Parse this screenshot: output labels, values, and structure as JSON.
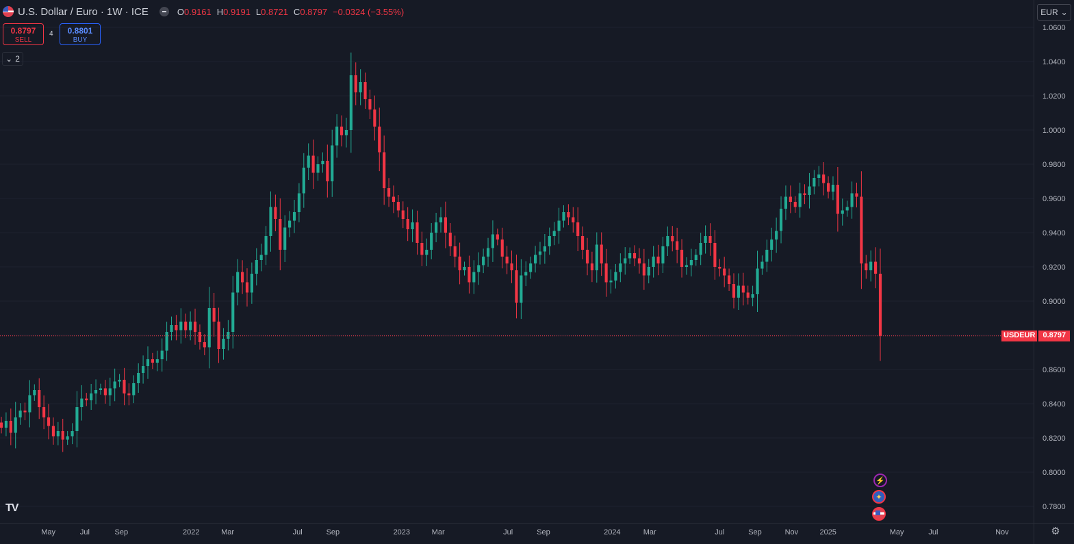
{
  "header": {
    "title": "U.S. Dollar / Euro · 1W · ICE",
    "ohlc": [
      {
        "k": "O",
        "v": "0.9161"
      },
      {
        "k": "H",
        "v": "0.9191"
      },
      {
        "k": "L",
        "v": "0.8721"
      },
      {
        "k": "C",
        "v": "0.8797"
      }
    ],
    "change": "−0.0324 (−3.55%)"
  },
  "trade": {
    "sell_price": "0.8797",
    "sell_label": "SELL",
    "buy_price": "0.8801",
    "buy_label": "BUY",
    "spread": "4"
  },
  "indicators_toggle": "2",
  "currency": "EUR",
  "last_price_tag": {
    "symbol": "USDEUR",
    "value": "0.8797"
  },
  "colors": {
    "up": "#22ab94",
    "down": "#f23645",
    "background": "#161a25",
    "grid": "#1f2330"
  },
  "icons": [
    "tradingview-logo-icon",
    "settings-gear-icon",
    "flash-event-icon",
    "eu-flag-event-icon",
    "us-flag-event-icon",
    "chevron-down-icon",
    "minus-icon"
  ],
  "chart_data": {
    "type": "candlestick",
    "series_name": "USDEUR",
    "timeframe": "1W",
    "ylim": [
      0.77,
      1.064
    ],
    "y_ticks": [
      "1.0600",
      "1.0400",
      "1.0200",
      "1.0000",
      "0.9800",
      "0.9600",
      "0.9400",
      "0.9200",
      "0.9000",
      "0.8800",
      "0.8600",
      "0.8400",
      "0.8200",
      "0.8000",
      "0.7800"
    ],
    "y_tick_values": [
      1.06,
      1.04,
      1.02,
      1.0,
      0.98,
      0.96,
      0.94,
      0.92,
      0.9,
      0.88,
      0.86,
      0.84,
      0.82,
      0.8,
      0.78
    ],
    "x_ticks": [
      {
        "label": "May",
        "x": 0.045
      },
      {
        "label": "Jul",
        "x": 0.079
      },
      {
        "label": "Sep",
        "x": 0.113
      },
      {
        "label": "2022",
        "x": 0.178
      },
      {
        "label": "Mar",
        "x": 0.212
      },
      {
        "label": "Jul",
        "x": 0.277
      },
      {
        "label": "Sep",
        "x": 0.31
      },
      {
        "label": "2023",
        "x": 0.374
      },
      {
        "label": "Mar",
        "x": 0.408
      },
      {
        "label": "Jul",
        "x": 0.473
      },
      {
        "label": "Sep",
        "x": 0.506
      },
      {
        "label": "2024",
        "x": 0.57
      },
      {
        "label": "Mar",
        "x": 0.605
      },
      {
        "label": "Jul",
        "x": 0.67
      },
      {
        "label": "Sep",
        "x": 0.703
      },
      {
        "label": "Nov",
        "x": 0.737
      },
      {
        "label": "2025",
        "x": 0.771
      },
      {
        "label": "May",
        "x": 0.835
      },
      {
        "label": "Jul",
        "x": 0.869
      },
      {
        "label": "Nov",
        "x": 0.933
      }
    ],
    "last_close": 0.8797,
    "closes": [
      0.826,
      0.83,
      0.823,
      0.832,
      0.836,
      0.835,
      0.845,
      0.848,
      0.838,
      0.832,
      0.827,
      0.821,
      0.824,
      0.819,
      0.821,
      0.824,
      0.838,
      0.843,
      0.842,
      0.846,
      0.848,
      0.849,
      0.845,
      0.849,
      0.853,
      0.854,
      0.846,
      0.845,
      0.852,
      0.858,
      0.862,
      0.866,
      0.864,
      0.866,
      0.871,
      0.882,
      0.886,
      0.883,
      0.888,
      0.883,
      0.888,
      0.882,
      0.876,
      0.873,
      0.896,
      0.888,
      0.872,
      0.878,
      0.882,
      0.905,
      0.917,
      0.911,
      0.905,
      0.916,
      0.924,
      0.927,
      0.938,
      0.955,
      0.948,
      0.93,
      0.943,
      0.947,
      0.952,
      0.963,
      0.978,
      0.985,
      0.975,
      0.98,
      0.982,
      0.97,
      0.991,
      1.002,
      0.997,
      1.0,
      1.032,
      1.022,
      1.028,
      1.018,
      1.012,
      1.002,
      0.987,
      0.966,
      0.961,
      0.958,
      0.953,
      0.948,
      0.942,
      0.946,
      0.934,
      0.927,
      0.93,
      0.94,
      0.946,
      0.949,
      0.94,
      0.932,
      0.926,
      0.918,
      0.92,
      0.911,
      0.917,
      0.921,
      0.926,
      0.931,
      0.939,
      0.936,
      0.926,
      0.922,
      0.918,
      0.899,
      0.915,
      0.917,
      0.922,
      0.927,
      0.929,
      0.932,
      0.938,
      0.941,
      0.947,
      0.952,
      0.949,
      0.946,
      0.938,
      0.93,
      0.922,
      0.918,
      0.933,
      0.922,
      0.911,
      0.912,
      0.917,
      0.922,
      0.925,
      0.928,
      0.925,
      0.922,
      0.915,
      0.92,
      0.926,
      0.922,
      0.932,
      0.938,
      0.935,
      0.93,
      0.92,
      0.921,
      0.924,
      0.927,
      0.934,
      0.938,
      0.934,
      0.92,
      0.919,
      0.915,
      0.91,
      0.902,
      0.909,
      0.905,
      0.902,
      0.904,
      0.919,
      0.923,
      0.93,
      0.936,
      0.941,
      0.954,
      0.961,
      0.958,
      0.955,
      0.963,
      0.962,
      0.967,
      0.972,
      0.974,
      0.969,
      0.964,
      0.968,
      0.951,
      0.953,
      0.955,
      0.963,
      0.961,
      0.922,
      0.918,
      0.923,
      0.916,
      0.8797
    ]
  }
}
